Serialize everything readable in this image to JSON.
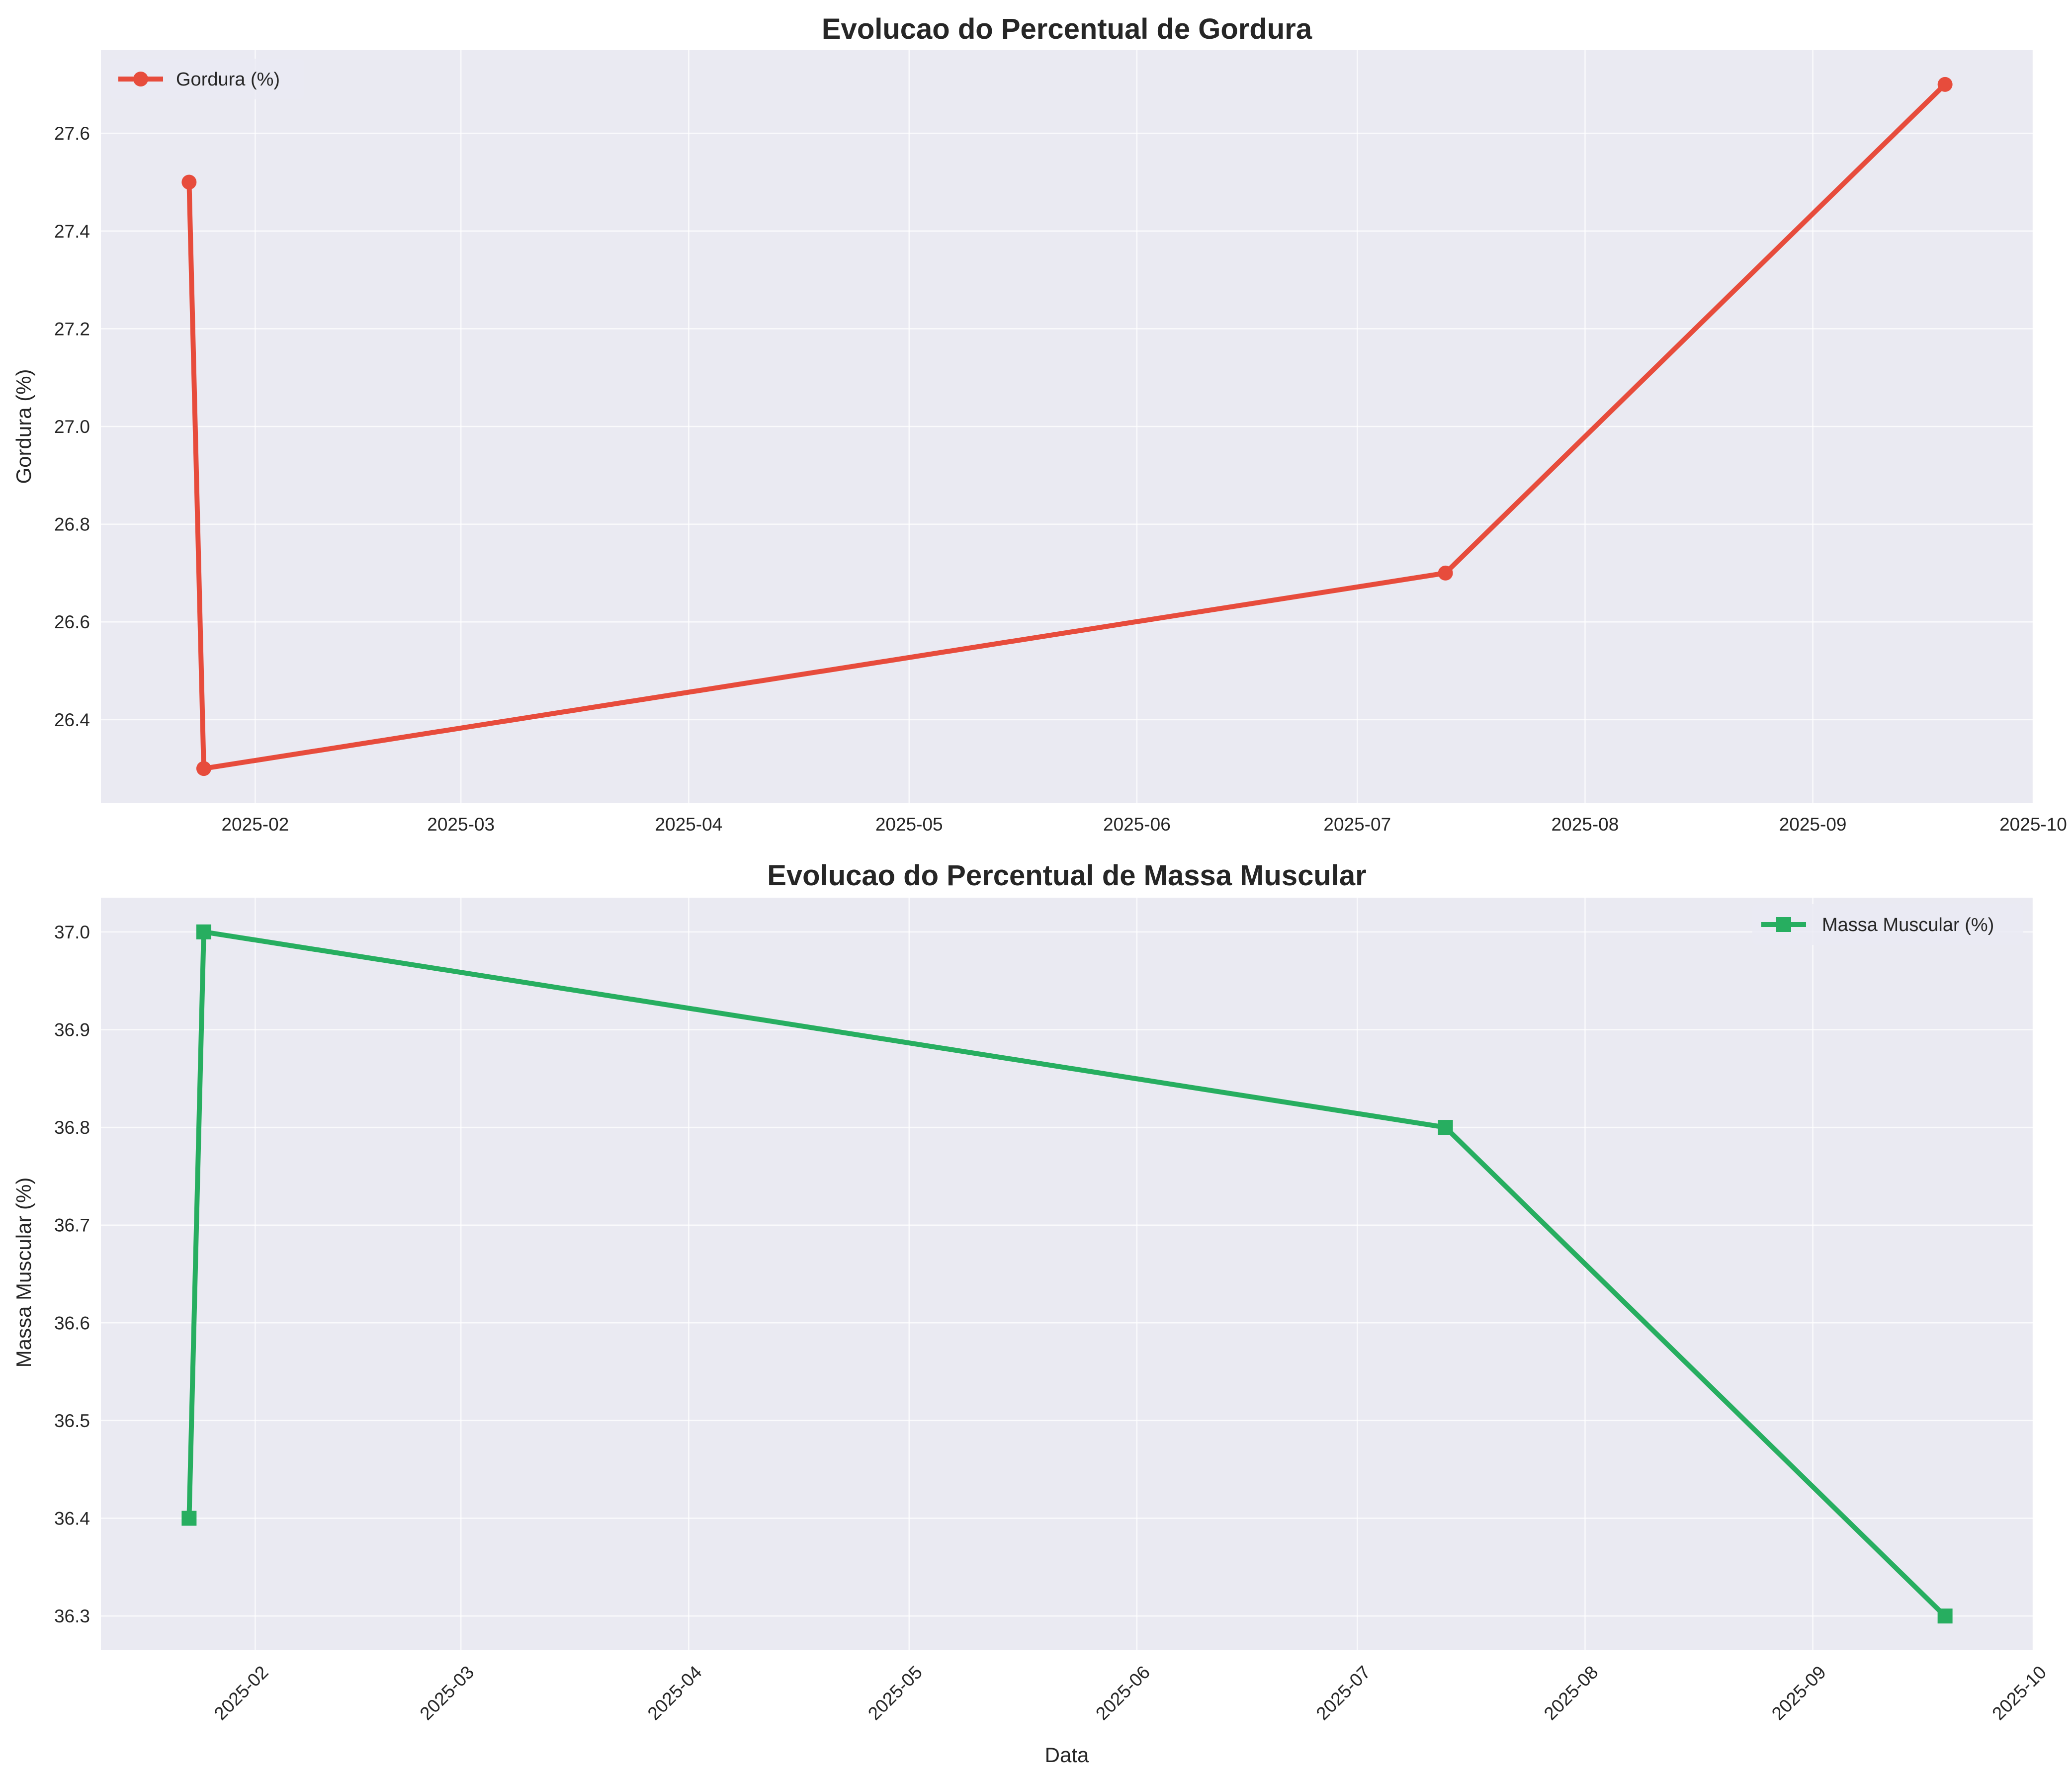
{
  "chart_data": [
    {
      "type": "line",
      "title": "Evolucao do Percentual de Gordura",
      "xlabel": "",
      "ylabel": "Gordura (%)",
      "x_type": "date",
      "xlim": [
        "2025-01-11",
        "2025-10-01"
      ],
      "ylim": [
        26.23,
        27.77
      ],
      "x_ticks": [
        "2025-02",
        "2025-03",
        "2025-04",
        "2025-05",
        "2025-06",
        "2025-07",
        "2025-08",
        "2025-09",
        "2025-10"
      ],
      "y_ticks": [
        "26.4",
        "26.6",
        "26.8",
        "27.0",
        "27.2",
        "27.4",
        "27.6"
      ],
      "x_tick_rotation": 0,
      "grid": true,
      "legend": "upper left",
      "series": [
        {
          "name": "Gordura (%)",
          "color": "#e74c3c",
          "marker": "circle",
          "x": [
            "2025-01-23",
            "2025-01-25",
            "2025-07-13",
            "2025-09-19"
          ],
          "y": [
            27.5,
            26.3,
            26.7,
            27.7
          ]
        }
      ]
    },
    {
      "type": "line",
      "title": "Evolucao do Percentual de Massa Muscular",
      "xlabel": "Data",
      "ylabel": "Massa Muscular (%)",
      "x_type": "date",
      "xlim": [
        "2025-01-11",
        "2025-10-01"
      ],
      "ylim": [
        36.265,
        37.035
      ],
      "x_ticks": [
        "2025-02",
        "2025-03",
        "2025-04",
        "2025-05",
        "2025-06",
        "2025-07",
        "2025-08",
        "2025-09",
        "2025-10"
      ],
      "y_ticks": [
        "36.3",
        "36.4",
        "36.5",
        "36.6",
        "36.7",
        "36.8",
        "36.9",
        "37.0"
      ],
      "x_tick_rotation": 45,
      "grid": true,
      "legend": "upper right",
      "series": [
        {
          "name": "Massa Muscular (%)",
          "color": "#27ae60",
          "marker": "square",
          "x": [
            "2025-01-23",
            "2025-01-25",
            "2025-07-13",
            "2025-09-19"
          ],
          "y": [
            36.4,
            37.0,
            36.8,
            36.3
          ]
        }
      ]
    }
  ]
}
